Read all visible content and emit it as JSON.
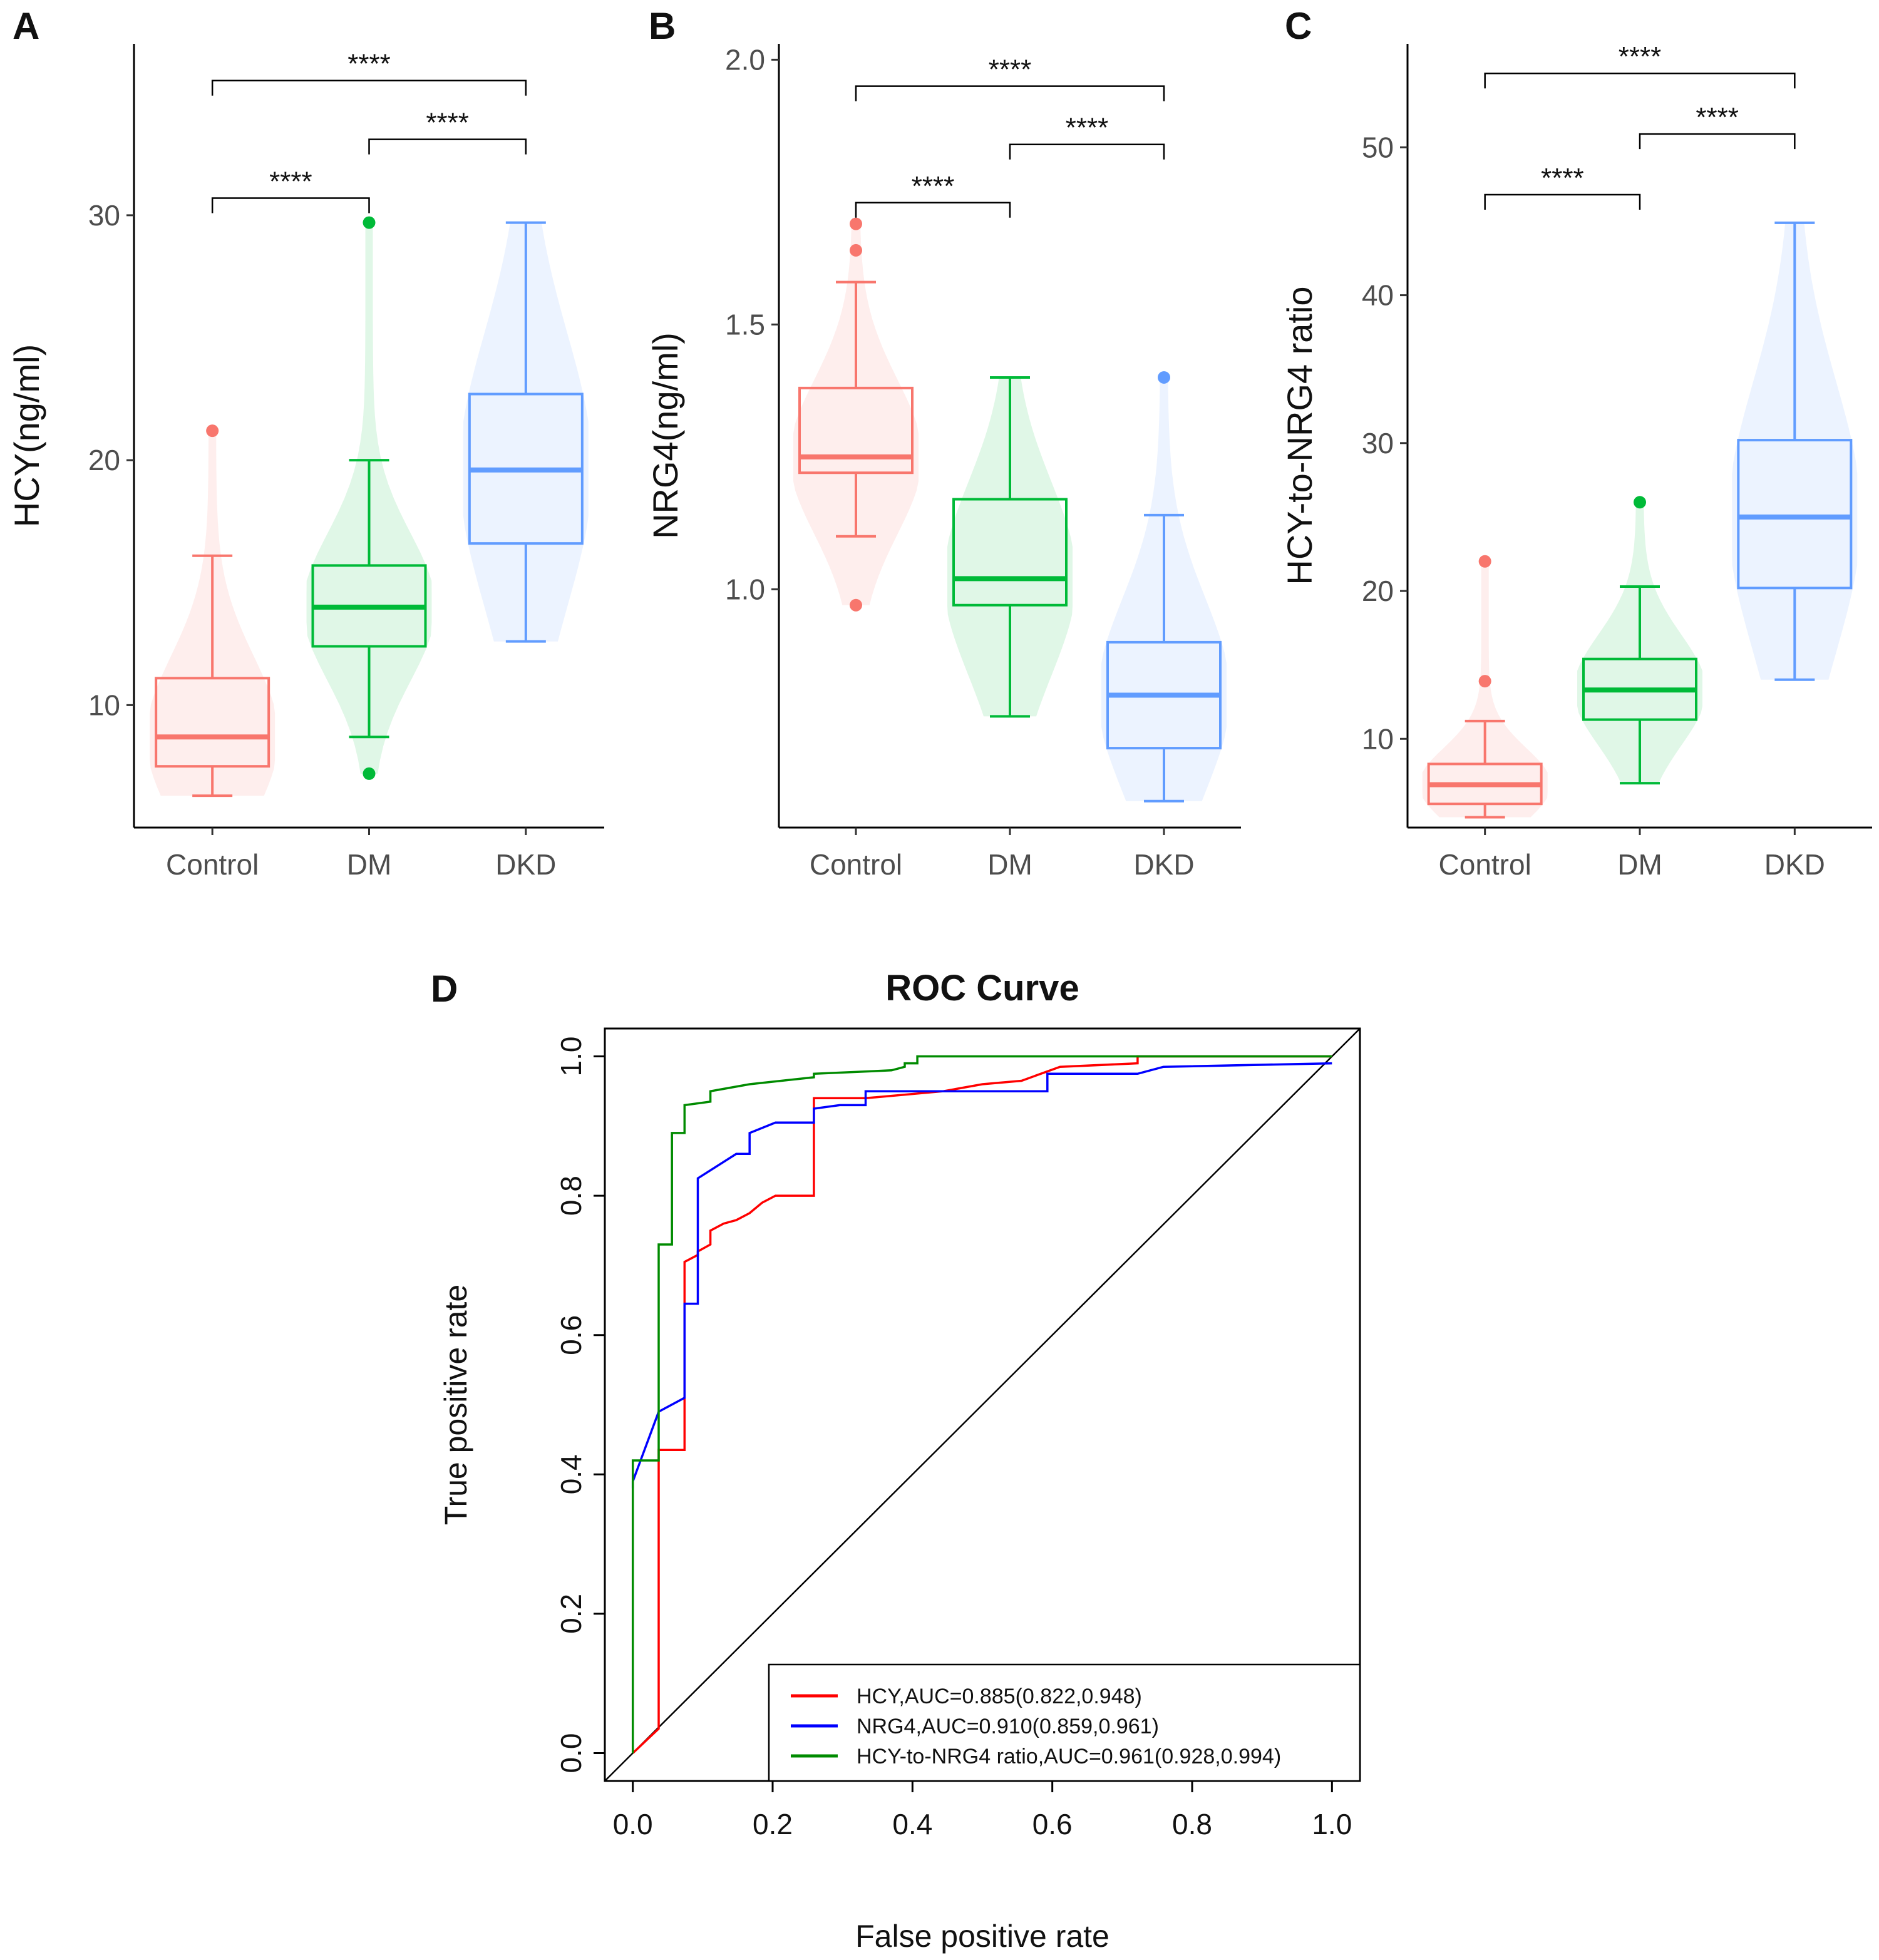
{
  "colors": {
    "Control": "#F8766D",
    "DM": "#00BA38",
    "DKD": "#619CFF",
    "roc_hcy": "#FF0000",
    "roc_nrg4": "#0000FF",
    "roc_ratio": "#008B00"
  },
  "chart_data": [
    {
      "type": "box",
      "panel": "A",
      "ylabel": "HCY(ng/ml)",
      "ylim": [
        5,
        37
      ],
      "yticks": [
        10,
        20,
        30
      ],
      "categories": [
        "Control",
        "DM",
        "DKD"
      ],
      "boxes": [
        {
          "group": "Control",
          "whisker_low": 6.3,
          "q1": 7.5,
          "median": 8.7,
          "q3": 11.1,
          "whisker_high": 16.1,
          "outliers": [
            21.2
          ]
        },
        {
          "group": "DM",
          "whisker_low": 8.7,
          "q1": 12.4,
          "median": 14.0,
          "q3": 15.7,
          "whisker_high": 20.0,
          "outliers": [
            29.7,
            7.2
          ]
        },
        {
          "group": "DKD",
          "whisker_low": 12.6,
          "q1": 16.6,
          "median": 19.6,
          "q3": 22.7,
          "whisker_high": 29.7,
          "outliers": []
        }
      ],
      "comparisons": [
        {
          "from": "Control",
          "to": "DM",
          "label": "****",
          "y": 30.7
        },
        {
          "from": "DM",
          "to": "DKD",
          "label": "****",
          "y": 33.1
        },
        {
          "from": "Control",
          "to": "DKD",
          "label": "****",
          "y": 35.5
        }
      ]
    },
    {
      "type": "box",
      "panel": "B",
      "ylabel": "NRG4(ng/ml)",
      "ylim": [
        0.55,
        2.03
      ],
      "yticks": [
        1.0,
        1.5,
        2.0
      ],
      "tick_labels": [
        "1.0",
        "1.5",
        "2.0"
      ],
      "categories": [
        "Control",
        "DM",
        "DKD"
      ],
      "boxes": [
        {
          "group": "Control",
          "whisker_low": 1.1,
          "q1": 1.22,
          "median": 1.25,
          "q3": 1.38,
          "whisker_high": 1.58,
          "outliers": [
            1.69,
            1.64,
            0.97
          ]
        },
        {
          "group": "DM",
          "whisker_low": 0.76,
          "q1": 0.97,
          "median": 1.02,
          "q3": 1.17,
          "whisker_high": 1.4,
          "outliers": []
        },
        {
          "group": "DKD",
          "whisker_low": 0.6,
          "q1": 0.7,
          "median": 0.8,
          "q3": 0.9,
          "whisker_high": 1.14,
          "outliers": [
            1.4
          ]
        }
      ],
      "comparisons": [
        {
          "from": "Control",
          "to": "DM",
          "label": "****",
          "y": 1.73
        },
        {
          "from": "DM",
          "to": "DKD",
          "label": "****",
          "y": 1.84
        },
        {
          "from": "Control",
          "to": "DKD",
          "label": "****",
          "y": 1.95
        }
      ]
    },
    {
      "type": "box",
      "panel": "C",
      "ylabel": "HCY-to-NRG4 ratio",
      "ylim": [
        4,
        57
      ],
      "yticks": [
        10,
        20,
        30,
        40,
        50
      ],
      "categories": [
        "Control",
        "DM",
        "DKD"
      ],
      "boxes": [
        {
          "group": "Control",
          "whisker_low": 4.7,
          "q1": 5.6,
          "median": 6.9,
          "q3": 8.3,
          "whisker_high": 11.2,
          "outliers": [
            22.0,
            13.9
          ]
        },
        {
          "group": "DM",
          "whisker_low": 7.0,
          "q1": 11.3,
          "median": 13.3,
          "q3": 15.4,
          "whisker_high": 20.3,
          "outliers": [
            26.0
          ]
        },
        {
          "group": "DKD",
          "whisker_low": 14.0,
          "q1": 20.2,
          "median": 25.0,
          "q3": 30.2,
          "whisker_high": 44.9,
          "outliers": []
        }
      ],
      "comparisons": [
        {
          "from": "Control",
          "to": "DM",
          "label": "****",
          "y": 46.8
        },
        {
          "from": "DM",
          "to": "DKD",
          "label": "****",
          "y": 50.9
        },
        {
          "from": "Control",
          "to": "DKD",
          "label": "****",
          "y": 55.0
        }
      ]
    },
    {
      "type": "line",
      "panel": "D",
      "title": "ROC Curve",
      "xlabel": "False positive rate",
      "ylabel": "True positive rate",
      "xlim": [
        -0.04,
        1.04
      ],
      "ylim": [
        -0.04,
        1.04
      ],
      "ticks": [
        0.0,
        0.2,
        0.4,
        0.6,
        0.8,
        1.0
      ],
      "tick_labels": [
        "0.0",
        "0.2",
        "0.4",
        "0.6",
        "0.8",
        "1.0"
      ],
      "series": [
        {
          "name": "HCY",
          "legend": "HCY,AUC=0.885(0.822,0.948)",
          "color_key": "roc_hcy",
          "x": [
            0,
            0.037,
            0.037,
            0.074,
            0.074,
            0.093,
            0.093,
            0.111,
            0.111,
            0.13,
            0.148,
            0.167,
            0.185,
            0.204,
            0.259,
            0.259,
            0.333,
            0.444,
            0.5,
            0.556,
            0.611,
            0.722,
            0.722,
            1.0
          ],
          "y": [
            0,
            0.035,
            0.435,
            0.435,
            0.705,
            0.715,
            0.72,
            0.73,
            0.75,
            0.76,
            0.765,
            0.775,
            0.79,
            0.8,
            0.8,
            0.94,
            0.94,
            0.95,
            0.96,
            0.965,
            0.985,
            0.99,
            1.0,
            1.0
          ]
        },
        {
          "name": "NRG4",
          "legend": "NRG4,AUC=0.910(0.859,0.961)",
          "color_key": "roc_nrg4",
          "x": [
            0,
            0,
            0.037,
            0.074,
            0.074,
            0.093,
            0.093,
            0.148,
            0.167,
            0.167,
            0.204,
            0.259,
            0.259,
            0.296,
            0.333,
            0.333,
            0.407,
            0.593,
            0.593,
            0.722,
            0.759,
            1.0
          ],
          "y": [
            0.38,
            0.39,
            0.49,
            0.51,
            0.645,
            0.645,
            0.825,
            0.86,
            0.86,
            0.89,
            0.905,
            0.905,
            0.925,
            0.93,
            0.93,
            0.95,
            0.95,
            0.95,
            0.975,
            0.975,
            0.985,
            0.99
          ]
        },
        {
          "name": "HCY-to-NRG4 ratio",
          "legend": "HCY-to-NRG4 ratio,AUC=0.961(0.928,0.994)",
          "color_key": "roc_ratio",
          "x": [
            0,
            0,
            0.037,
            0.037,
            0.056,
            0.056,
            0.074,
            0.074,
            0.111,
            0.111,
            0.167,
            0.259,
            0.259,
            0.37,
            0.389,
            0.389,
            0.407,
            0.407,
            1.0
          ],
          "y": [
            0,
            0.42,
            0.42,
            0.73,
            0.73,
            0.89,
            0.89,
            0.93,
            0.935,
            0.95,
            0.96,
            0.97,
            0.975,
            0.98,
            0.985,
            0.99,
            0.99,
            1.0,
            1.0
          ]
        }
      ]
    }
  ]
}
